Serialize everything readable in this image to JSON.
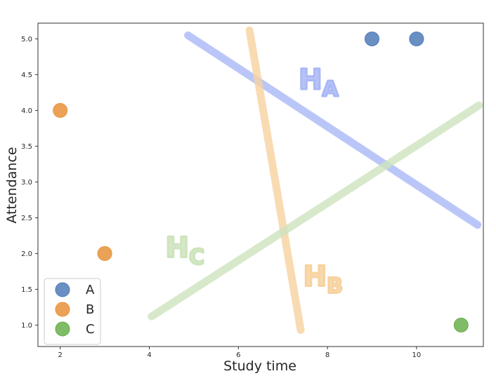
{
  "chart_data": {
    "type": "scatter",
    "xlabel": "Study time",
    "ylabel": "Attendance",
    "xlim": [
      1.5,
      11.5
    ],
    "ylim": [
      0.7,
      5.22
    ],
    "xticks": [
      "2",
      "4",
      "6",
      "8",
      "10"
    ],
    "yticks": [
      "1.0",
      "1.5",
      "2.0",
      "2.5",
      "3.0",
      "3.5",
      "4.0",
      "4.5",
      "5.0"
    ],
    "grid": false,
    "legend_position": "bottom-left",
    "series": [
      {
        "name": "A",
        "color": "#4f7bb8",
        "points": [
          {
            "x": 9,
            "y": 5.0
          },
          {
            "x": 10,
            "y": 5.0
          }
        ]
      },
      {
        "name": "B",
        "color": "#e8923a",
        "points": [
          {
            "x": 2,
            "y": 4.0
          },
          {
            "x": 3,
            "y": 2.0
          }
        ]
      },
      {
        "name": "C",
        "color": "#6aaf4c",
        "points": [
          {
            "x": 11,
            "y": 1.0
          }
        ]
      }
    ],
    "annotations": [
      {
        "text": "HA",
        "color": "#aab8f6",
        "line": {
          "x1": 4.87,
          "y1": 5.05,
          "x2": 11.37,
          "y2": 2.4
        },
        "label_at": {
          "x": 7.8,
          "y": 4.3
        }
      },
      {
        "text": "HB",
        "color": "#f7d29f",
        "line": {
          "x1": 6.25,
          "y1": 5.12,
          "x2": 7.4,
          "y2": 0.93
        },
        "label_at": {
          "x": 7.9,
          "y": 1.55
        }
      },
      {
        "text": "HC",
        "color": "#cde4bd",
        "line": {
          "x1": 4.05,
          "y1": 1.12,
          "x2": 11.4,
          "y2": 4.07
        },
        "label_at": {
          "x": 4.8,
          "y": 1.95
        }
      }
    ]
  }
}
